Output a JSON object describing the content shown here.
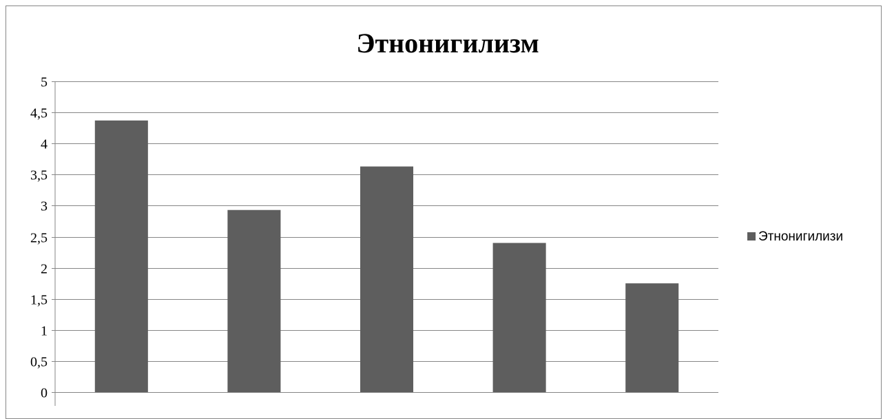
{
  "chart_data": {
    "type": "bar",
    "title": "Этнонигилизм",
    "categories": [
      "",
      "",
      "",
      "",
      ""
    ],
    "series": [
      {
        "name": "Этнонигилизи",
        "values": [
          4.37,
          2.93,
          3.63,
          2.4,
          1.75
        ],
        "color": "#5e5e5e"
      }
    ],
    "y_ticks": [
      "0",
      "0,5",
      "1",
      "1,5",
      "2",
      "2,5",
      "3",
      "3,5",
      "4",
      "4,5",
      "5"
    ],
    "ylim": [
      0,
      5
    ],
    "grid": true,
    "legend_position": "right",
    "gridline_color": "#868686"
  }
}
